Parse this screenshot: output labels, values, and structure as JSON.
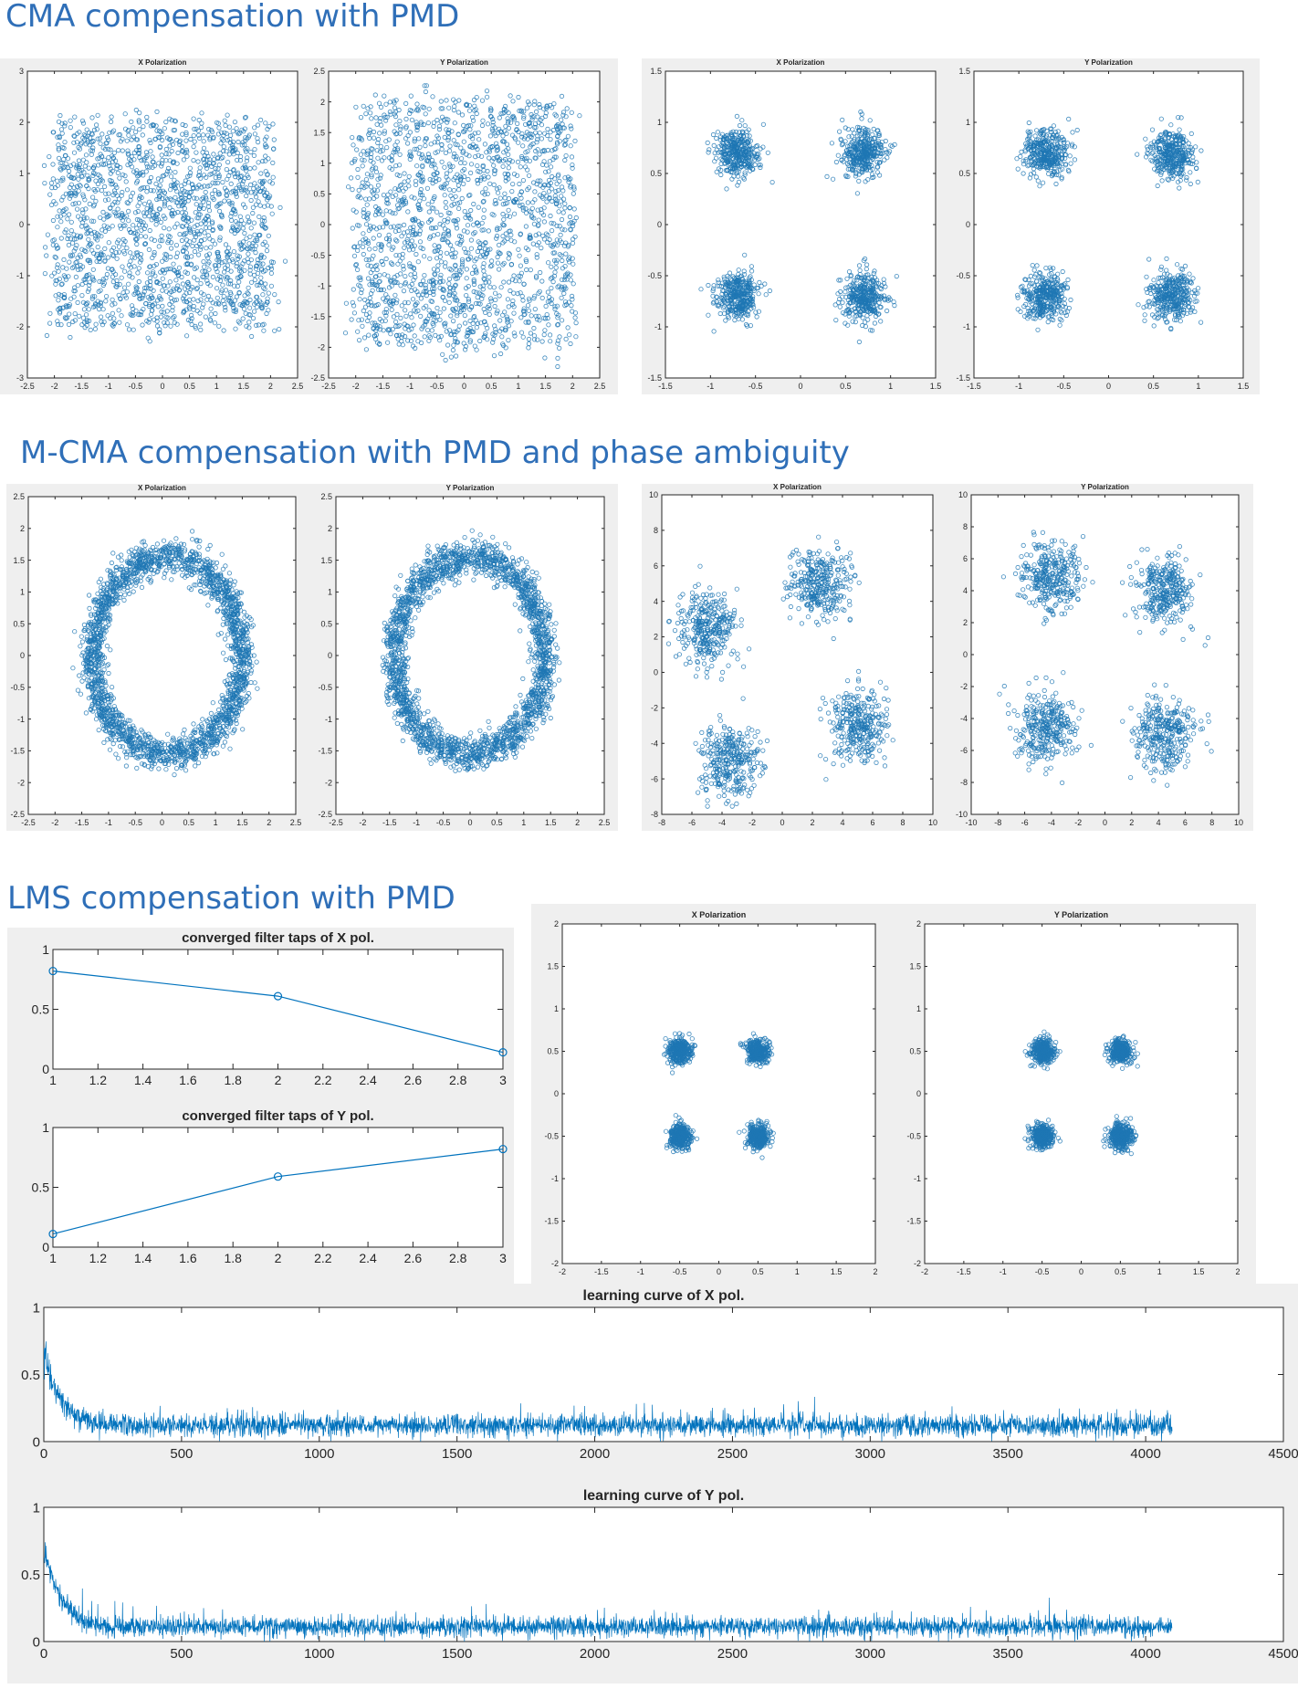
{
  "headings": {
    "cma": "CMA compensation with PMD",
    "mcma": "M-CMA compensation with PMD and phase ambiguity",
    "lms": "LMS compensation with PMD"
  },
  "colors": {
    "heading": "#2f6fb8",
    "marker": "#1f77b4",
    "line": "#0072bd",
    "panel_bg": "#efefef"
  },
  "chart_data": [
    {
      "id": "cma-x-before",
      "type": "scatter",
      "title": "X Polarization",
      "xlim": [
        -2.5,
        2.5
      ],
      "ylim": [
        -3,
        3
      ],
      "xticks": [
        -2.5,
        -2,
        -1.5,
        -1,
        -0.5,
        0,
        0.5,
        1,
        1.5,
        2,
        2.5
      ],
      "yticks": [
        -3,
        -2,
        -1,
        0,
        1,
        2,
        3
      ],
      "distribution": {
        "shape": "square",
        "center": [
          0,
          0
        ],
        "half_width": 2.0,
        "n": 1800
      }
    },
    {
      "id": "cma-y-before",
      "type": "scatter",
      "title": "Y Polarization",
      "xlim": [
        -2.5,
        2.5
      ],
      "ylim": [
        -2.5,
        2.5
      ],
      "xticks": [
        -2.5,
        -2,
        -1.5,
        -1,
        -0.5,
        0,
        0.5,
        1,
        1.5,
        2,
        2.5
      ],
      "yticks": [
        -2.5,
        -2,
        -1.5,
        -1,
        -0.5,
        0,
        0.5,
        1,
        1.5,
        2,
        2.5
      ],
      "distribution": {
        "shape": "square",
        "center": [
          0,
          0
        ],
        "half_width": 2.0,
        "n": 1800
      }
    },
    {
      "id": "cma-x-after",
      "type": "scatter",
      "title": "X Polarization",
      "xlim": [
        -1.5,
        1.5
      ],
      "ylim": [
        -1.5,
        1.5
      ],
      "xticks": [
        -1.5,
        -1,
        -0.5,
        0,
        0.5,
        1,
        1.5
      ],
      "yticks": [
        -1.5,
        -1,
        -0.5,
        0,
        0.5,
        1,
        1.5
      ],
      "distribution": {
        "shape": "clusters",
        "centers": [
          [
            -0.7,
            0.7
          ],
          [
            0.7,
            0.7
          ],
          [
            -0.7,
            -0.7
          ],
          [
            0.7,
            -0.7
          ]
        ],
        "spread": 0.12,
        "n_per_cluster": 350
      }
    },
    {
      "id": "cma-y-after",
      "type": "scatter",
      "title": "Y Polarization",
      "xlim": [
        -1.5,
        1.5
      ],
      "ylim": [
        -1.5,
        1.5
      ],
      "xticks": [
        -1.5,
        -1,
        -0.5,
        0,
        0.5,
        1,
        1.5
      ],
      "yticks": [
        -1.5,
        -1,
        -0.5,
        0,
        0.5,
        1,
        1.5
      ],
      "distribution": {
        "shape": "clusters",
        "centers": [
          [
            -0.7,
            0.7
          ],
          [
            0.7,
            0.7
          ],
          [
            -0.7,
            -0.7
          ],
          [
            0.7,
            -0.7
          ]
        ],
        "spread": 0.12,
        "n_per_cluster": 350
      }
    },
    {
      "id": "mcma-x-before",
      "type": "scatter",
      "title": "X Polarization",
      "xlim": [
        -2.5,
        2.5
      ],
      "ylim": [
        -2.5,
        2.5
      ],
      "xticks": [
        -2.5,
        -2,
        -1.5,
        -1,
        -0.5,
        0,
        0.5,
        1,
        1.5,
        2,
        2.5
      ],
      "yticks": [
        -2.5,
        -2,
        -1.5,
        -1,
        -0.5,
        0,
        0.5,
        1,
        1.5,
        2,
        2.5
      ],
      "distribution": {
        "shape": "ring",
        "center": [
          0.1,
          0
        ],
        "radius_x": 1.4,
        "radius_y": 1.55,
        "width": 0.3,
        "n": 2200
      }
    },
    {
      "id": "mcma-y-before",
      "type": "scatter",
      "title": "Y Polarization",
      "xlim": [
        -2.5,
        2.5
      ],
      "ylim": [
        -2.5,
        2.5
      ],
      "xticks": [
        -2.5,
        -2,
        -1.5,
        -1,
        -0.5,
        0,
        0.5,
        1,
        1.5,
        2,
        2.5
      ],
      "yticks": [
        -2.5,
        -2,
        -1.5,
        -1,
        -0.5,
        0,
        0.5,
        1,
        1.5,
        2,
        2.5
      ],
      "distribution": {
        "shape": "ring",
        "center": [
          0,
          0
        ],
        "radius_x": 1.4,
        "radius_y": 1.55,
        "width": 0.3,
        "n": 2200
      }
    },
    {
      "id": "mcma-x-after",
      "type": "scatter",
      "title": "X Polarization",
      "xlim": [
        -8,
        10
      ],
      "ylim": [
        -8,
        10
      ],
      "xticks": [
        -8,
        -6,
        -4,
        -2,
        0,
        2,
        4,
        6,
        8,
        10
      ],
      "yticks": [
        -8,
        -6,
        -4,
        -2,
        0,
        2,
        4,
        6,
        8,
        10
      ],
      "distribution": {
        "shape": "clusters",
        "centers": [
          [
            -5,
            2.5
          ],
          [
            2.5,
            5
          ],
          [
            -3.5,
            -5
          ],
          [
            5,
            -3
          ]
        ],
        "spread": 1.0,
        "n_per_cluster": 320
      }
    },
    {
      "id": "mcma-y-after",
      "type": "scatter",
      "title": "Y Polarization",
      "xlim": [
        -10,
        10
      ],
      "ylim": [
        -10,
        10
      ],
      "xticks": [
        -10,
        -8,
        -6,
        -4,
        -2,
        0,
        2,
        4,
        6,
        8,
        10
      ],
      "yticks": [
        -10,
        -8,
        -6,
        -4,
        -2,
        0,
        2,
        4,
        6,
        8,
        10
      ],
      "distribution": {
        "shape": "clusters",
        "centers": [
          [
            -4,
            5
          ],
          [
            4.5,
            4
          ],
          [
            -4.5,
            -4.5
          ],
          [
            4.5,
            -5
          ]
        ],
        "spread": 1.1,
        "n_per_cluster": 320
      }
    },
    {
      "id": "lms-taps-x",
      "type": "line",
      "title": "converged filter taps of X pol.",
      "x": [
        1,
        2,
        3
      ],
      "y": [
        0.82,
        0.61,
        0.14
      ],
      "xlim": [
        1,
        3
      ],
      "ylim": [
        0,
        1
      ],
      "xticks": [
        1,
        1.2,
        1.4,
        1.6,
        1.8,
        2,
        2.2,
        2.4,
        2.6,
        2.8,
        3
      ],
      "yticks": [
        0,
        0.5,
        1
      ]
    },
    {
      "id": "lms-taps-y",
      "type": "line",
      "title": "converged filter taps of Y pol.",
      "x": [
        1,
        2,
        3
      ],
      "y": [
        0.11,
        0.59,
        0.82
      ],
      "xlim": [
        1,
        3
      ],
      "ylim": [
        0,
        1
      ],
      "xticks": [
        1,
        1.2,
        1.4,
        1.6,
        1.8,
        2,
        2.2,
        2.4,
        2.6,
        2.8,
        3
      ],
      "yticks": [
        0,
        0.5,
        1
      ]
    },
    {
      "id": "lms-x-const",
      "type": "scatter",
      "title": "X Polarization",
      "xlim": [
        -2,
        2
      ],
      "ylim": [
        -2,
        2
      ],
      "xticks": [
        -2,
        -1.5,
        -1,
        -0.5,
        0,
        0.5,
        1,
        1.5,
        2
      ],
      "yticks": [
        -2,
        -1.5,
        -1,
        -0.5,
        0,
        0.5,
        1,
        1.5,
        2
      ],
      "distribution": {
        "shape": "clusters",
        "centers": [
          [
            -0.5,
            0.5
          ],
          [
            0.5,
            0.5
          ],
          [
            -0.5,
            -0.5
          ],
          [
            0.5,
            -0.5
          ]
        ],
        "spread": 0.07,
        "n_per_cluster": 350
      }
    },
    {
      "id": "lms-y-const",
      "type": "scatter",
      "title": "Y Polarization",
      "xlim": [
        -2,
        2
      ],
      "ylim": [
        -2,
        2
      ],
      "xticks": [
        -2,
        -1.5,
        -1,
        -0.5,
        0,
        0.5,
        1,
        1.5,
        2
      ],
      "yticks": [
        -2,
        -1.5,
        -1,
        -0.5,
        0,
        0.5,
        1,
        1.5,
        2
      ],
      "distribution": {
        "shape": "clusters",
        "centers": [
          [
            -0.5,
            0.5
          ],
          [
            0.5,
            0.5
          ],
          [
            -0.5,
            -0.5
          ],
          [
            0.5,
            -0.5
          ]
        ],
        "spread": 0.07,
        "n_per_cluster": 350
      }
    },
    {
      "id": "lms-learning-x",
      "type": "line",
      "title": "learning curve of X pol.",
      "xlim": [
        0,
        4500
      ],
      "ylim": [
        0,
        1
      ],
      "xticks": [
        0,
        500,
        1000,
        1500,
        2000,
        2500,
        3000,
        3500,
        4000,
        4500
      ],
      "yticks": [
        0,
        0.5,
        1
      ],
      "curve": {
        "n_iterations": 4096,
        "start": 0.65,
        "decay_constant": 60,
        "steady_state": 0.12,
        "noise": 0.06
      }
    },
    {
      "id": "lms-learning-y",
      "type": "line",
      "title": "learning curve of Y pol.",
      "xlim": [
        0,
        4500
      ],
      "ylim": [
        0,
        1
      ],
      "xticks": [
        0,
        500,
        1000,
        1500,
        2000,
        2500,
        3000,
        3500,
        4000,
        4500
      ],
      "yticks": [
        0,
        0.5,
        1
      ],
      "curve": {
        "n_iterations": 4096,
        "start": 0.7,
        "decay_constant": 60,
        "steady_state": 0.11,
        "noise": 0.055
      }
    }
  ]
}
